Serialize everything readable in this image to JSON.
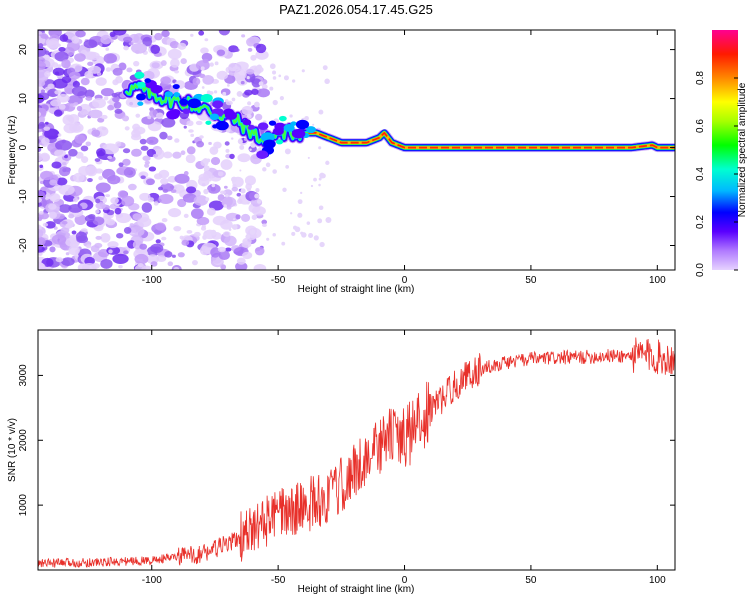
{
  "title": "PAZ1.2026.054.17.45.G25",
  "chart_data": [
    {
      "type": "heatmap",
      "xlabel": "Height of straight line (km)",
      "ylabel": "Frequency (Hz)",
      "xlim": [
        -145,
        107
      ],
      "ylim": [
        -25,
        24
      ],
      "xticks": [
        "-100",
        "-50",
        "0",
        "50",
        "100"
      ],
      "yticks": [
        "20",
        "10",
        "0",
        "-10",
        "-20"
      ],
      "colorbar_label": "Normalized spectral amplitude",
      "colorbar_ticks": [
        "0.0",
        "0.2",
        "0.4",
        "0.6",
        "0.8"
      ],
      "colorbar_range": [
        0,
        1
      ],
      "ridge": {
        "x": [
          -105,
          -95,
          -85,
          -75,
          -68,
          -60,
          -55,
          -50,
          -45,
          -40,
          -35,
          -30,
          -25,
          -20,
          -15,
          -10,
          -8,
          -5,
          0,
          10,
          30,
          50,
          70,
          90,
          98,
          100,
          107
        ],
        "frequency": [
          12,
          10,
          9,
          7,
          6,
          3,
          1,
          3,
          3,
          3,
          3,
          2,
          1,
          1,
          1,
          2,
          3,
          1,
          0,
          0,
          0,
          0,
          0,
          0,
          0.5,
          0,
          0
        ]
      }
    },
    {
      "type": "line",
      "xlabel": "Height of straight line (km)",
      "ylabel": "SNR (10 * v/v)",
      "xlim": [
        -145,
        107
      ],
      "ylim": [
        0,
        3700
      ],
      "xticks": [
        "-100",
        "-50",
        "0",
        "50",
        "100"
      ],
      "yticks": [
        "1000",
        "2000",
        "3000"
      ],
      "series": [
        {
          "name": "SNR",
          "color": "#e8302a",
          "x": [
            -145,
            -120,
            -100,
            -90,
            -80,
            -70,
            -60,
            -55,
            -50,
            -45,
            -40,
            -35,
            -30,
            -25,
            -20,
            -15,
            -10,
            -5,
            0,
            5,
            10,
            15,
            20,
            25,
            30,
            40,
            50,
            60,
            70,
            80,
            90,
            95,
            100,
            107
          ],
          "y": [
            100,
            120,
            150,
            200,
            250,
            400,
            600,
            750,
            850,
            900,
            1000,
            1050,
            1100,
            1300,
            1500,
            1750,
            1900,
            2100,
            2000,
            2250,
            2450,
            2650,
            2850,
            3000,
            3100,
            3200,
            3250,
            3270,
            3280,
            3300,
            3300,
            3320,
            3280,
            3250
          ]
        }
      ]
    }
  ]
}
